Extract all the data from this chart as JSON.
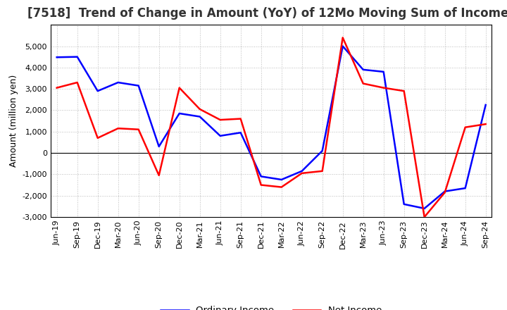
{
  "title": "[7518]  Trend of Change in Amount (YoY) of 12Mo Moving Sum of Incomes",
  "ylabel": "Amount (million yen)",
  "x_labels": [
    "Jun-19",
    "Sep-19",
    "Dec-19",
    "Mar-20",
    "Jun-20",
    "Sep-20",
    "Dec-20",
    "Mar-21",
    "Jun-21",
    "Sep-21",
    "Dec-21",
    "Mar-22",
    "Jun-22",
    "Sep-22",
    "Dec-22",
    "Mar-23",
    "Jun-23",
    "Sep-23",
    "Dec-23",
    "Mar-24",
    "Jun-24",
    "Sep-24"
  ],
  "ordinary_income": [
    4480,
    4500,
    2900,
    3300,
    3150,
    300,
    1850,
    1700,
    800,
    950,
    -1100,
    -1250,
    -850,
    100,
    5000,
    3900,
    3800,
    -2400,
    -2600,
    -1800,
    -1650,
    2250
  ],
  "net_income": [
    3050,
    3300,
    700,
    1150,
    1100,
    -1050,
    3050,
    2050,
    1550,
    1600,
    -1500,
    -1600,
    -950,
    -850,
    5400,
    3250,
    3050,
    2900,
    -3000,
    -1850,
    1200,
    1350
  ],
  "ordinary_color": "#0000FF",
  "net_color": "#FF0000",
  "ylim": [
    -3000,
    6000
  ],
  "yticks": [
    -3000,
    -2000,
    -1000,
    0,
    1000,
    2000,
    3000,
    4000,
    5000
  ],
  "background_color": "#FFFFFF",
  "plot_bg_color": "#FFFFFF",
  "grid_color": "#BBBBBB",
  "title_color": "#333333",
  "title_fontsize": 12,
  "label_fontsize": 9,
  "tick_fontsize": 8,
  "legend_fontsize": 9.5
}
